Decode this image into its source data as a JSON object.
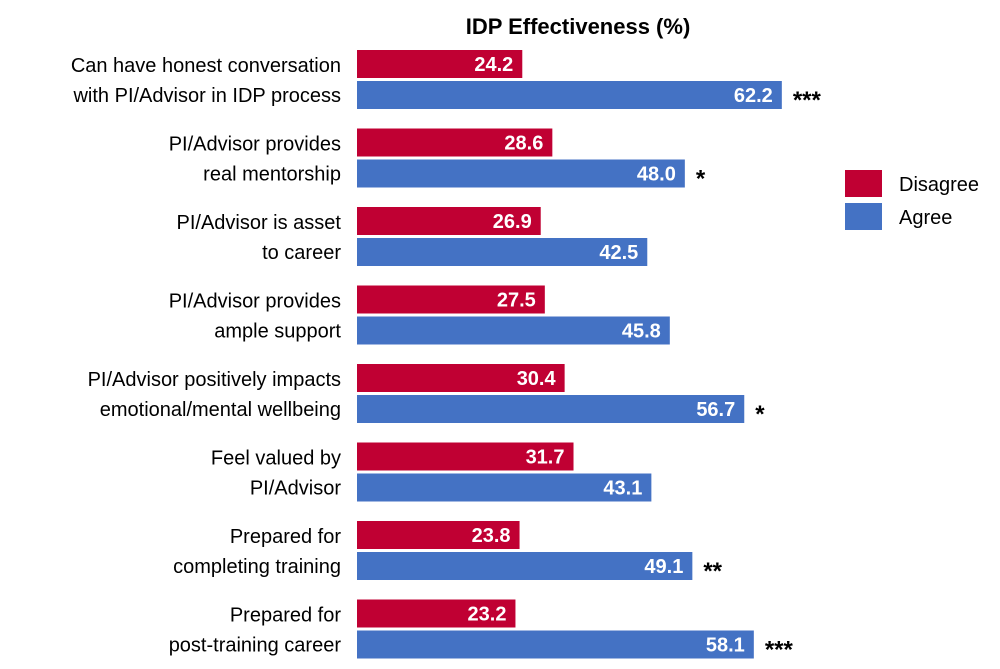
{
  "chart_data": {
    "type": "bar",
    "orientation": "horizontal",
    "title": "IDP Effectiveness (%)",
    "xlabel": "",
    "ylabel": "",
    "xlim": [
      0,
      70
    ],
    "grid": false,
    "legend_position": "right",
    "categories": [
      [
        "Can have honest conversation",
        "with PI/Advisor in IDP process"
      ],
      [
        "PI/Advisor provides",
        "real mentorship"
      ],
      [
        "PI/Advisor is asset",
        "to career"
      ],
      [
        "PI/Advisor provides",
        "ample support"
      ],
      [
        "PI/Advisor positively impacts",
        "emotional/mental wellbeing"
      ],
      [
        "Feel valued by",
        "PI/Advisor"
      ],
      [
        "Prepared for",
        "completing training"
      ],
      [
        "Prepared for",
        "post-training career"
      ]
    ],
    "series": [
      {
        "name": "Disagree",
        "color": "#C00033",
        "values": [
          24.2,
          28.6,
          26.9,
          27.5,
          30.4,
          31.7,
          23.8,
          23.2
        ]
      },
      {
        "name": "Agree",
        "color": "#4472C4",
        "values": [
          62.2,
          48.0,
          42.5,
          45.8,
          56.7,
          43.1,
          49.1,
          58.1
        ]
      }
    ],
    "value_labels": {
      "Disagree": [
        "24.2",
        "28.6",
        "26.9",
        "27.5",
        "30.4",
        "31.7",
        "23.8",
        "23.2"
      ],
      "Agree": [
        "62.2",
        "48.0",
        "42.5",
        "45.8",
        "56.7",
        "43.1",
        "49.1",
        "58.1"
      ]
    },
    "significance": [
      "***",
      "*",
      "",
      "",
      "*",
      "",
      "**",
      "***"
    ]
  }
}
